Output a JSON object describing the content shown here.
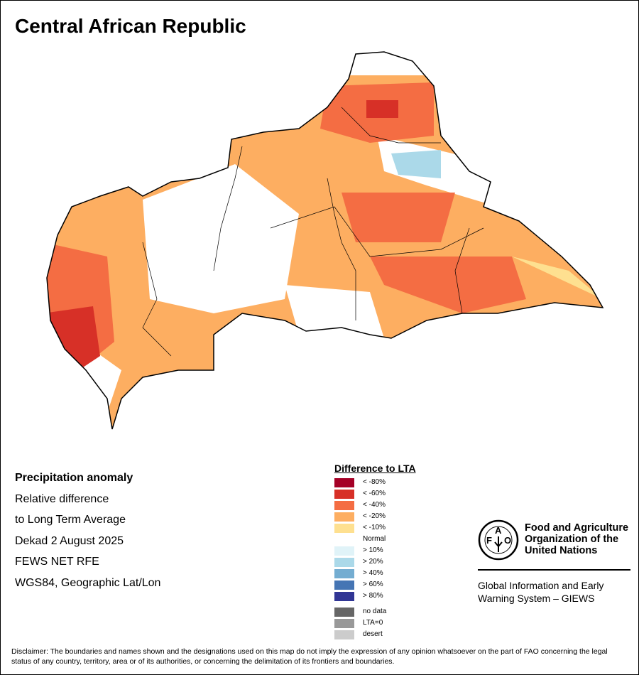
{
  "title": "Central African Republic",
  "info": {
    "heading": "Precipitation anomaly",
    "lines": [
      "Relative difference",
      "to Long Term Average",
      "Dekad 2 August 2025",
      "FEWS NET RFE",
      "WGS84, Geographic Lat/Lon"
    ]
  },
  "legend": {
    "title": "Difference to LTA",
    "items": [
      {
        "label": "< -80%",
        "color": "#a50026"
      },
      {
        "label": "< -60%",
        "color": "#d73027"
      },
      {
        "label": "< -40%",
        "color": "#f46d43"
      },
      {
        "label": "< -20%",
        "color": "#fdae61"
      },
      {
        "label": "< -10%",
        "color": "#fee090"
      },
      {
        "label": "Normal",
        "color": "#ffffff"
      },
      {
        "label": "> 10%",
        "color": "#e0f3f8"
      },
      {
        "label": "> 20%",
        "color": "#abd9e9"
      },
      {
        "label": "> 40%",
        "color": "#74add1"
      },
      {
        "label": "> 60%",
        "color": "#4575b4"
      },
      {
        "label": "> 80%",
        "color": "#313695"
      }
    ],
    "extra": [
      {
        "label": "no data",
        "color": "#666666"
      },
      {
        "label": "LTA=0",
        "color": "#999999"
      },
      {
        "label": "desert",
        "color": "#cccccc"
      }
    ]
  },
  "fao": {
    "logo_text": "FAO FIAT PANIS",
    "name": "Food and Agriculture Organization of the United Nations",
    "giews": "Global Information and Early Warning System – GIEWS"
  },
  "disclaimer": "Disclaimer: The boundaries and names shown and the designations used on this map do not imply the expression of any opinion whatsoever on the part of FAO concerning the legal status of any country, territory, area or of its authorities, or concerning the delimitation of its frontiers and boundaries."
}
